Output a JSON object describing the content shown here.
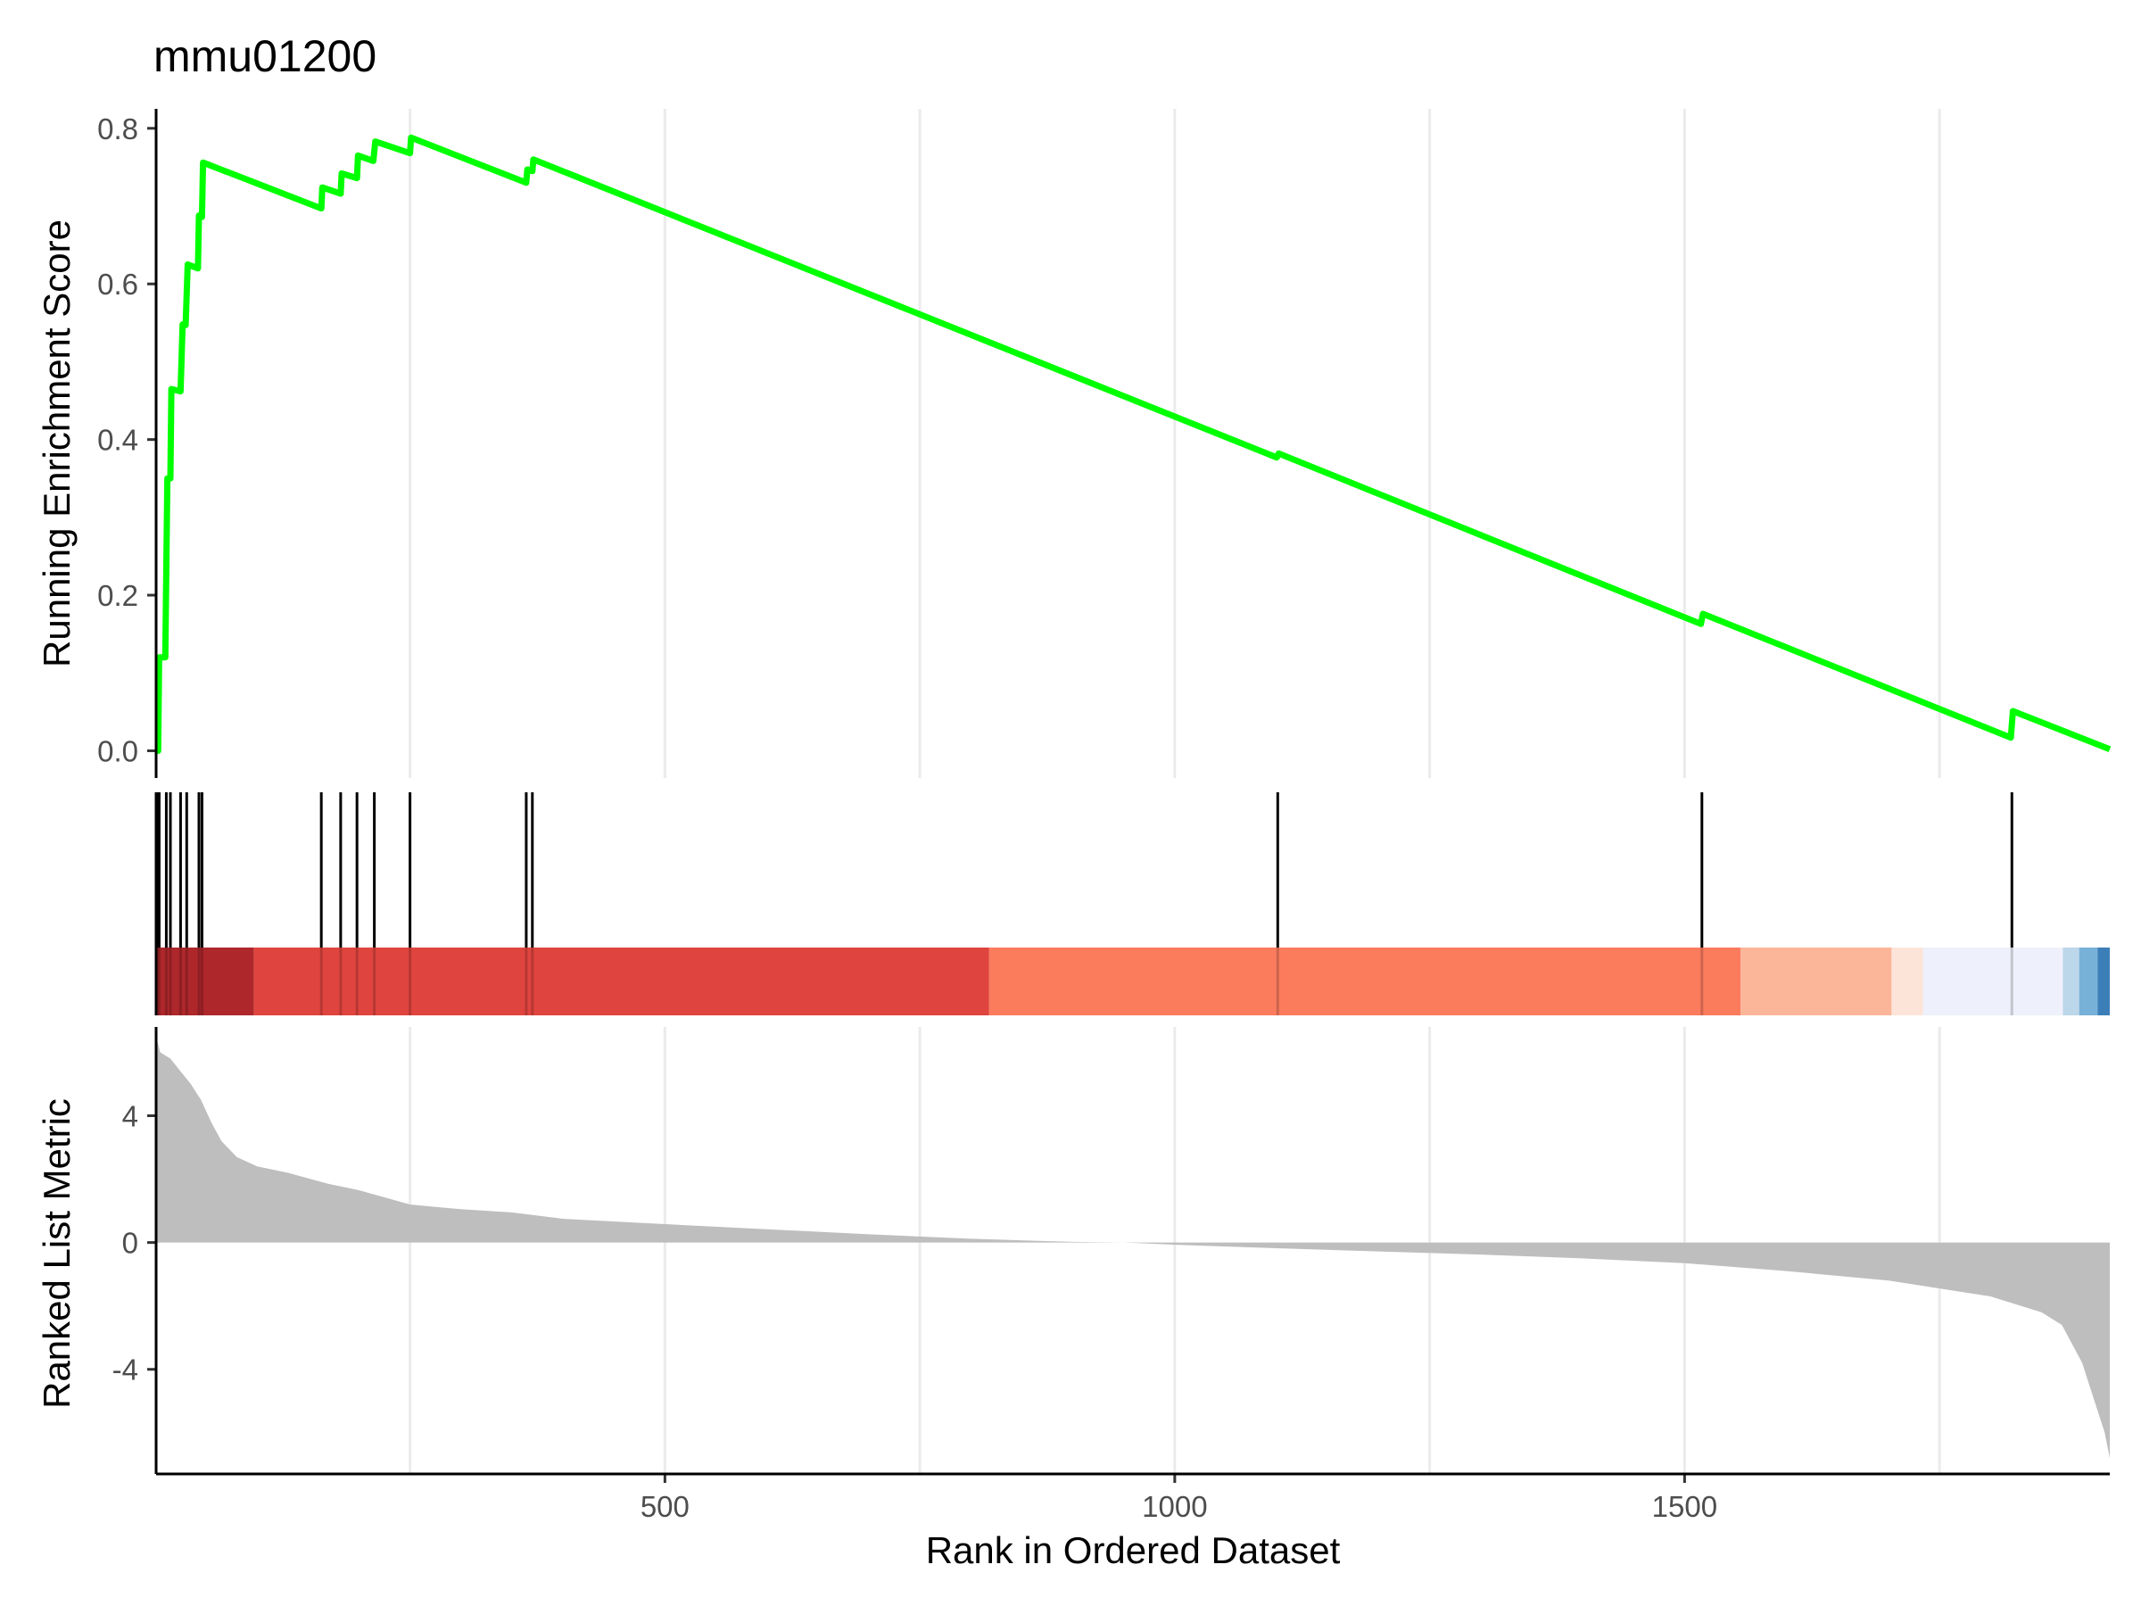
{
  "chart_data": [
    {
      "panel": "running-enrichment-score",
      "type": "line",
      "title": "mmu01200",
      "xlabel": "",
      "ylabel": "Running Enrichment Score",
      "xlim": [
        1,
        1917
      ],
      "ylim": [
        -0.035,
        0.825
      ],
      "yticks": [
        0.0,
        0.2,
        0.4,
        0.6,
        0.8
      ],
      "ytick_labels": [
        "0.0",
        "0.2",
        "0.4",
        "0.6",
        "0.8"
      ],
      "grid": "vertical",
      "line_color": "#00ff00",
      "points": [
        [
          1,
          0.0
        ],
        [
          3,
          0.0
        ],
        [
          4,
          0.12
        ],
        [
          10,
          0.12
        ],
        [
          12,
          0.35
        ],
        [
          15,
          0.35
        ],
        [
          16,
          0.465
        ],
        [
          25,
          0.462
        ],
        [
          27,
          0.548
        ],
        [
          30,
          0.547
        ],
        [
          32,
          0.625
        ],
        [
          42,
          0.62
        ],
        [
          43,
          0.688
        ],
        [
          46,
          0.686
        ],
        [
          47,
          0.756
        ],
        [
          163,
          0.697
        ],
        [
          164,
          0.724
        ],
        [
          182,
          0.716
        ],
        [
          183,
          0.742
        ],
        [
          198,
          0.736
        ],
        [
          199,
          0.765
        ],
        [
          214,
          0.758
        ],
        [
          216,
          0.783
        ],
        [
          250,
          0.768
        ],
        [
          251,
          0.788
        ],
        [
          364,
          0.73
        ],
        [
          365,
          0.747
        ],
        [
          370,
          0.745
        ],
        [
          371,
          0.76
        ],
        [
          1100,
          0.377
        ],
        [
          1102,
          0.382
        ],
        [
          1516,
          0.163
        ],
        [
          1518,
          0.176
        ],
        [
          1820,
          0.017
        ],
        [
          1822,
          0.051
        ],
        [
          1917,
          0.002
        ]
      ]
    },
    {
      "panel": "gene-hits",
      "type": "barcode",
      "hit_positions": [
        2,
        4,
        11,
        15,
        25,
        31,
        43,
        46,
        163,
        182,
        198,
        215,
        250,
        364,
        370,
        1101,
        1517,
        1821
      ],
      "color_bands": [
        {
          "start": 1,
          "end": 97,
          "color": "#ae272b"
        },
        {
          "start": 97,
          "end": 818,
          "color": "#e0443e"
        },
        {
          "start": 818,
          "end": 1555,
          "color": "#fb7b5d"
        },
        {
          "start": 1555,
          "end": 1703,
          "color": "#fbb599"
        },
        {
          "start": 1703,
          "end": 1734,
          "color": "#fde4d9"
        },
        {
          "start": 1734,
          "end": 1871,
          "color": "#eef1fb"
        },
        {
          "start": 1871,
          "end": 1887,
          "color": "#bcd6ea"
        },
        {
          "start": 1887,
          "end": 1905,
          "color": "#78b1d8"
        },
        {
          "start": 1905,
          "end": 1917,
          "color": "#3c7fb8"
        }
      ]
    },
    {
      "panel": "ranked-list-metric",
      "type": "area",
      "xlabel": "Rank in Ordered Dataset",
      "ylabel": "Ranked List Metric",
      "xlim": [
        1,
        1917
      ],
      "ylim": [
        -7.3,
        6.8
      ],
      "xticks": [
        500,
        1000,
        1500
      ],
      "xtick_labels": [
        "500",
        "1000",
        "1500"
      ],
      "yticks": [
        -4,
        0,
        4
      ],
      "ytick_labels": [
        "-4",
        "0",
        "4"
      ],
      "grid": "vertical",
      "fill_color": "#bebebe",
      "points": [
        [
          1,
          6.5
        ],
        [
          5,
          6.0
        ],
        [
          15,
          5.8
        ],
        [
          25,
          5.4
        ],
        [
          35,
          5.0
        ],
        [
          45,
          4.5
        ],
        [
          55,
          3.8
        ],
        [
          65,
          3.2
        ],
        [
          80,
          2.7
        ],
        [
          100,
          2.4
        ],
        [
          130,
          2.2
        ],
        [
          170,
          1.85
        ],
        [
          200,
          1.65
        ],
        [
          250,
          1.2
        ],
        [
          300,
          1.05
        ],
        [
          350,
          0.95
        ],
        [
          400,
          0.75
        ],
        [
          500,
          0.58
        ],
        [
          600,
          0.42
        ],
        [
          700,
          0.26
        ],
        [
          800,
          0.12
        ],
        [
          900,
          0.02
        ],
        [
          950,
          0.0
        ],
        [
          1000,
          -0.07
        ],
        [
          1100,
          -0.18
        ],
        [
          1200,
          -0.28
        ],
        [
          1300,
          -0.38
        ],
        [
          1400,
          -0.5
        ],
        [
          1500,
          -0.65
        ],
        [
          1600,
          -0.9
        ],
        [
          1700,
          -1.2
        ],
        [
          1750,
          -1.45
        ],
        [
          1800,
          -1.7
        ],
        [
          1850,
          -2.2
        ],
        [
          1870,
          -2.6
        ],
        [
          1880,
          -3.2
        ],
        [
          1890,
          -3.8
        ],
        [
          1897,
          -4.5
        ],
        [
          1905,
          -5.3
        ],
        [
          1912,
          -6.0
        ],
        [
          1917,
          -6.8
        ]
      ]
    }
  ]
}
